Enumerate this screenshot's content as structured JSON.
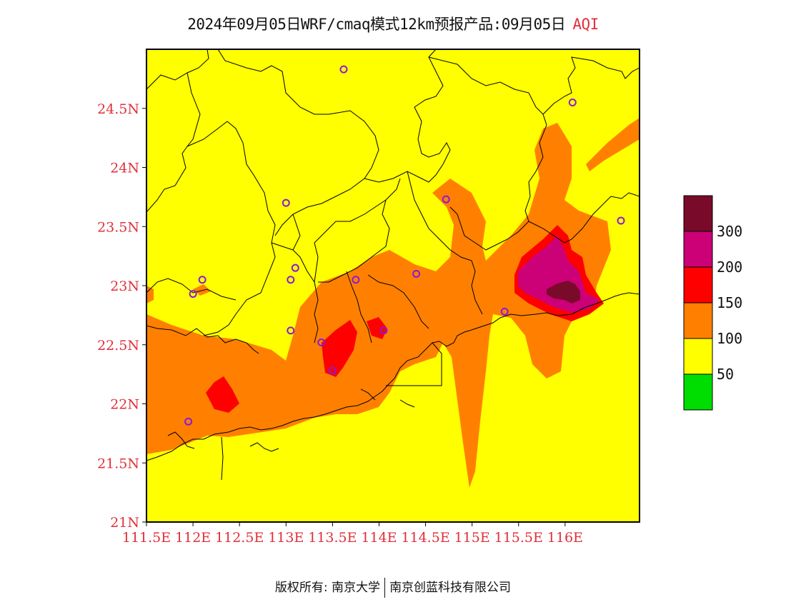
{
  "title": {
    "main": "2024年09月05日WRF/cmaq模式12km预报产品:09月05日",
    "variable": "AQI"
  },
  "map_data": {
    "type": "geographic_heatmap",
    "region": "Guangdong",
    "lon_range": [
      111.5,
      116.8
    ],
    "lat_range": [
      21,
      25
    ],
    "x_ticks": [
      "111.5E",
      "112E",
      "112.5E",
      "113E",
      "113.5E",
      "114E",
      "114.5E",
      "115E",
      "115.5E",
      "116E"
    ],
    "y_ticks": [
      "21N",
      "21.5N",
      "22N",
      "22.5N",
      "23N",
      "23.5N",
      "24N",
      "24.5N"
    ],
    "legend": {
      "labels": [
        "300",
        "200",
        "150",
        "100",
        "50"
      ],
      "colors": [
        "#7a0a2a",
        "#cc0077",
        "#ff0000",
        "#ff8000",
        "#ffff00",
        "#00dd00"
      ]
    },
    "background_level_color": "#ffff00",
    "hotspots": [
      {
        "level": "severe",
        "color": "#7a0a2a",
        "lon": 115.73,
        "lat": 22.95
      },
      {
        "level": "very_unhealthy",
        "color": "#cc0077",
        "lon": 115.72,
        "lat": 23.0
      },
      {
        "level": "unhealthy",
        "color": "#ff0000",
        "lon": 113.4,
        "lat": 22.55
      },
      {
        "level": "unhealthy",
        "color": "#ff0000",
        "lon": 112.3,
        "lat": 22.1
      },
      {
        "level": "unhealthy",
        "color": "#ff0000",
        "lon": 113.8,
        "lat": 22.75
      }
    ],
    "stations": [
      {
        "lon": 113.62,
        "lat": 24.83
      },
      {
        "lon": 116.08,
        "lat": 24.55
      },
      {
        "lon": 113.0,
        "lat": 23.7
      },
      {
        "lon": 114.72,
        "lat": 23.73
      },
      {
        "lon": 116.6,
        "lat": 23.55
      },
      {
        "lon": 113.1,
        "lat": 23.15
      },
      {
        "lon": 112.1,
        "lat": 23.05
      },
      {
        "lon": 113.05,
        "lat": 23.05
      },
      {
        "lon": 113.75,
        "lat": 23.05
      },
      {
        "lon": 114.4,
        "lat": 23.1
      },
      {
        "lon": 112.0,
        "lat": 22.93
      },
      {
        "lon": 113.05,
        "lat": 22.62
      },
      {
        "lon": 113.38,
        "lat": 22.52
      },
      {
        "lon": 114.05,
        "lat": 22.62
      },
      {
        "lon": 113.5,
        "lat": 22.28
      },
      {
        "lon": 111.95,
        "lat": 21.85
      },
      {
        "lon": 115.35,
        "lat": 22.78
      }
    ]
  },
  "footer": {
    "left": "版权所有: 南京大学",
    "right": "南京创蓝科技有限公司"
  }
}
